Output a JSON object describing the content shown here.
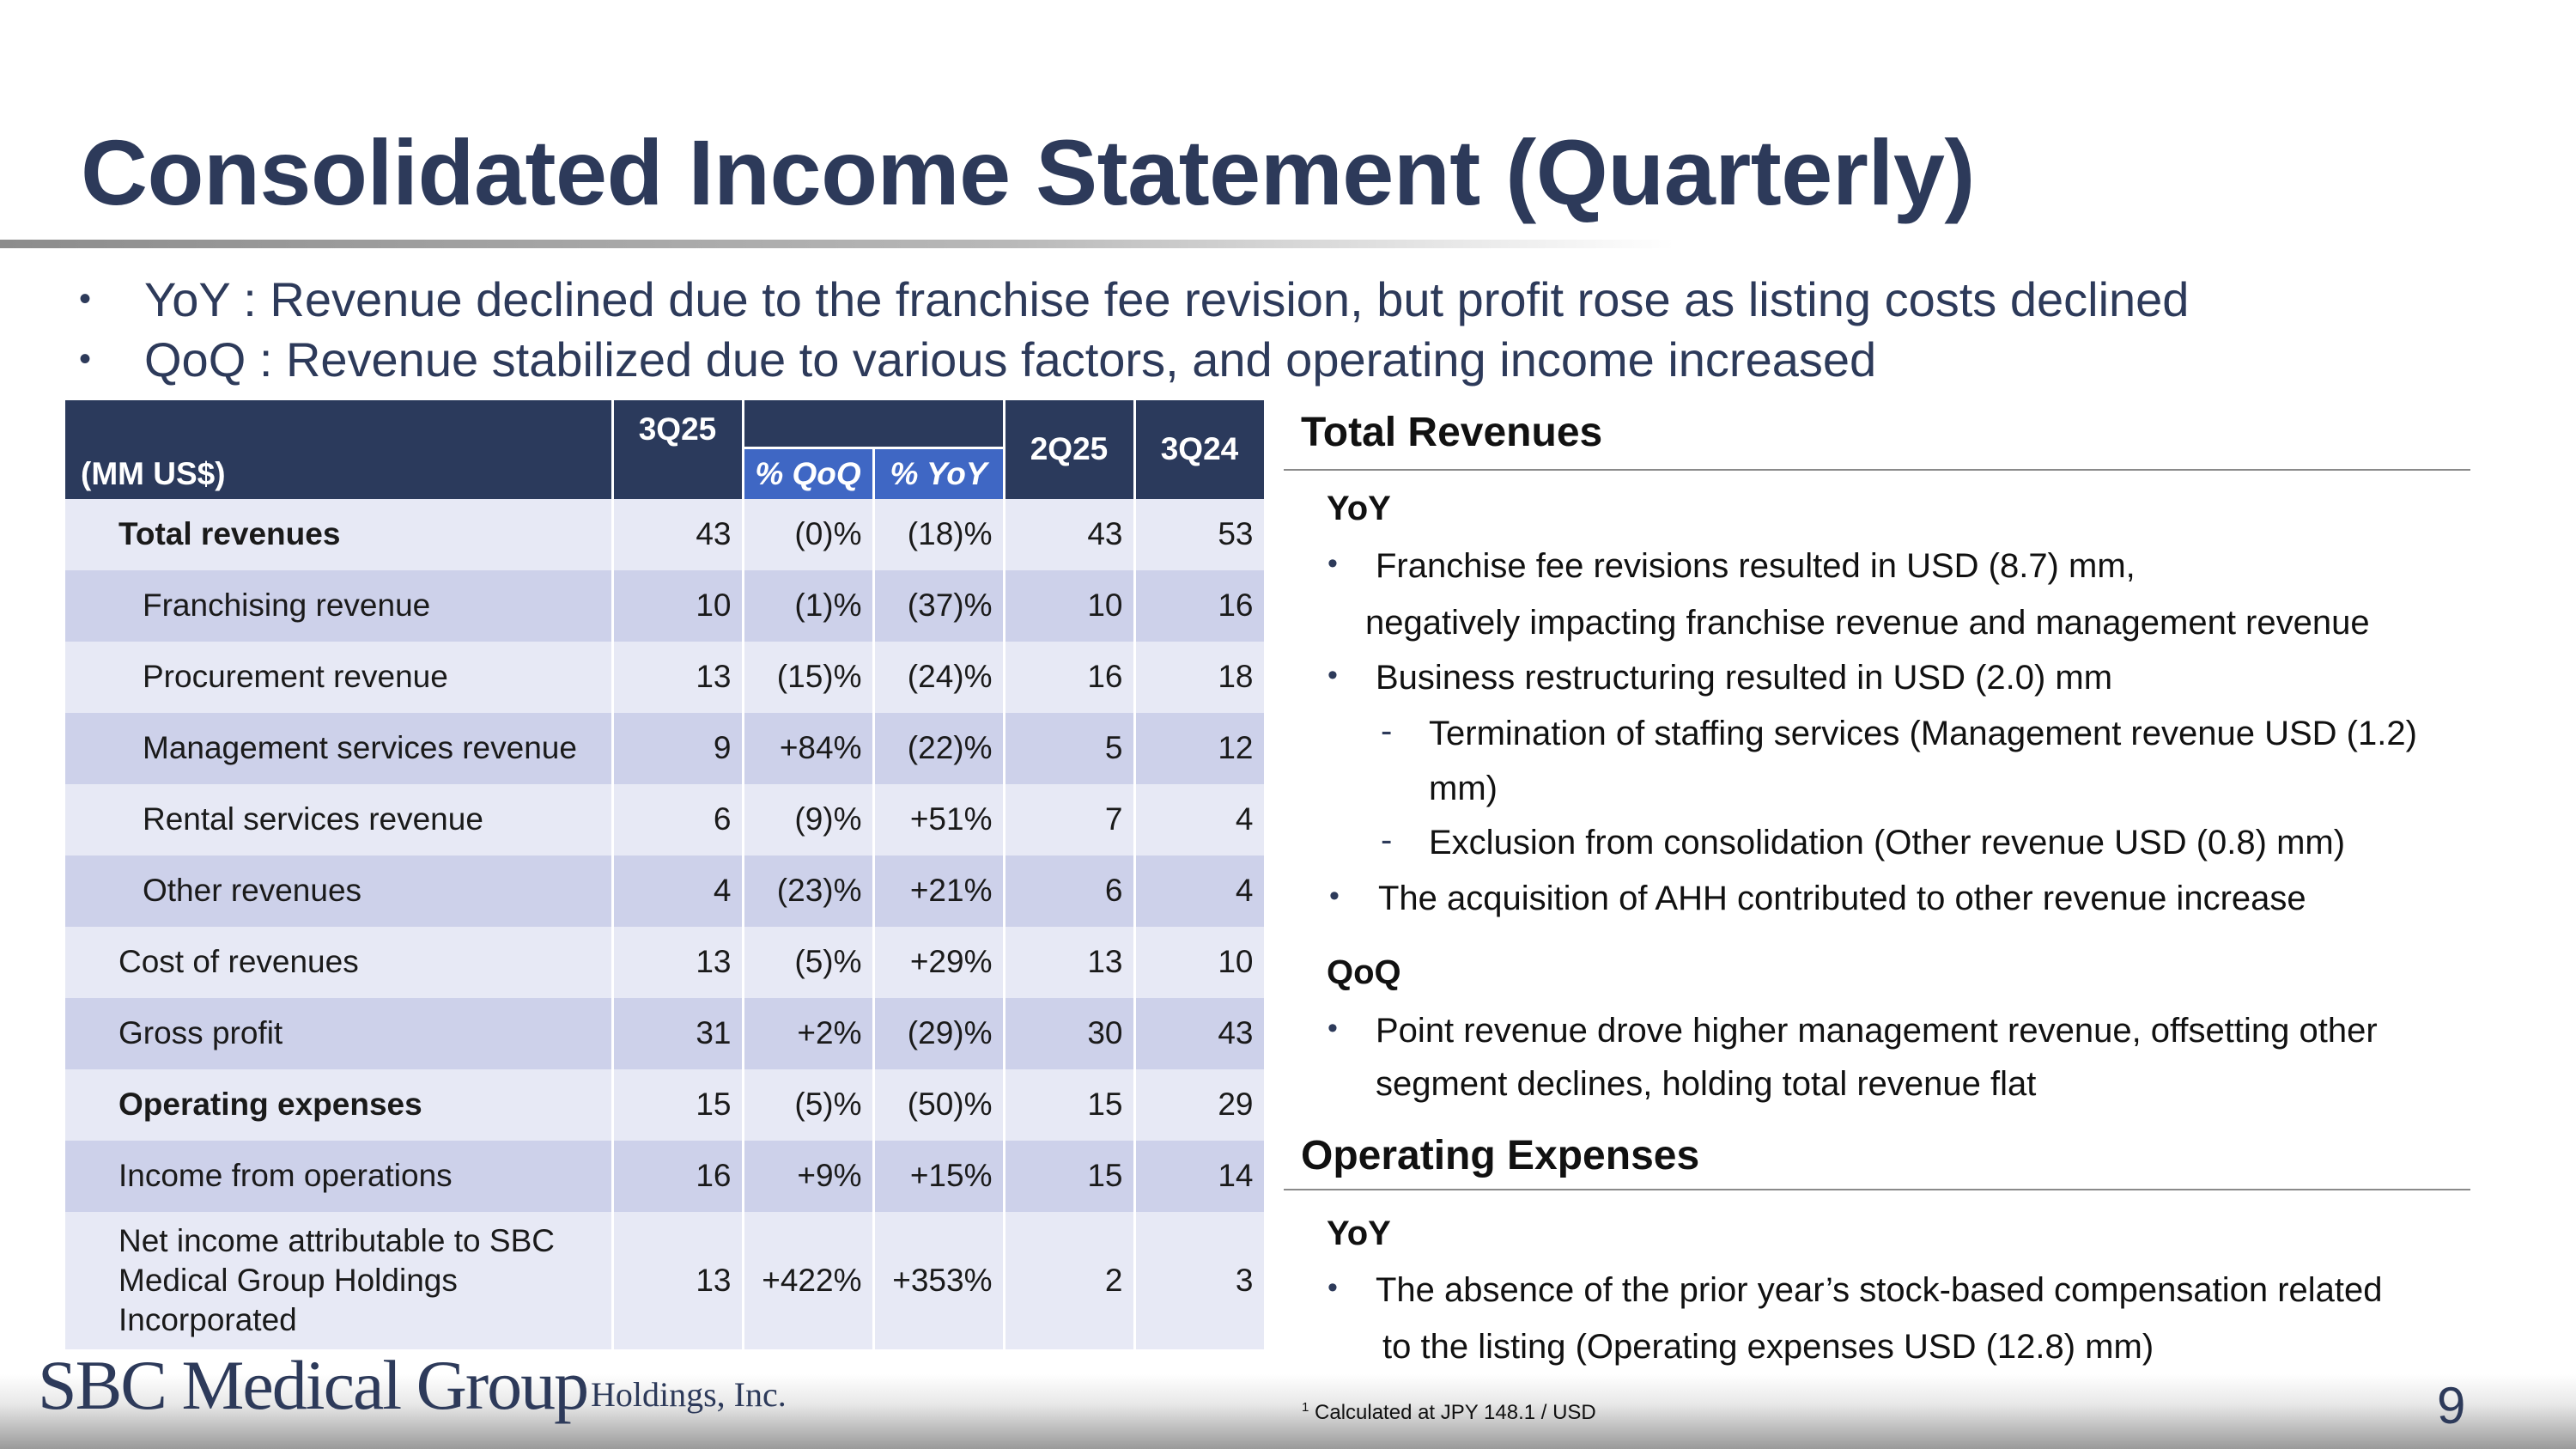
{
  "title": "Consolidated Income Statement (Quarterly)",
  "summary_bullets": [
    "YoY  : Revenue declined due to the franchise fee revision, but profit rose as listing costs declined",
    "QoQ : Revenue stabilized due to various factors, and operating income increased"
  ],
  "table": {
    "unit_label": "(MM US$)",
    "col_3q25": "3Q25",
    "col_qoq": "% QoQ",
    "col_yoy": "% YoY",
    "col_2q25": "2Q25",
    "col_3q24": "3Q24",
    "rows": [
      {
        "label": "Total revenues",
        "v3q25": "43",
        "qoq": "(0)%",
        "yoy": "(18)%",
        "v2q25": "43",
        "v3q24": "53"
      },
      {
        "label": "Franchising revenue",
        "v3q25": "10",
        "qoq": "(1)%",
        "yoy": "(37)%",
        "v2q25": "10",
        "v3q24": "16"
      },
      {
        "label": "Procurement revenue",
        "v3q25": "13",
        "qoq": "(15)%",
        "yoy": "(24)%",
        "v2q25": "16",
        "v3q24": "18"
      },
      {
        "label": "Management services revenue",
        "v3q25": "9",
        "qoq": "+84%",
        "yoy": "(22)%",
        "v2q25": "5",
        "v3q24": "12"
      },
      {
        "label": "Rental services revenue",
        "v3q25": "6",
        "qoq": "(9)%",
        "yoy": "+51%",
        "v2q25": "7",
        "v3q24": "4"
      },
      {
        "label": "Other revenues",
        "v3q25": "4",
        "qoq": "(23)%",
        "yoy": "+21%",
        "v2q25": "6",
        "v3q24": "4"
      },
      {
        "label": "Cost of revenues",
        "v3q25": "13",
        "qoq": "(5)%",
        "yoy": "+29%",
        "v2q25": "13",
        "v3q24": "10"
      },
      {
        "label": "Gross profit",
        "v3q25": "31",
        "qoq": "+2%",
        "yoy": "(29)%",
        "v2q25": "30",
        "v3q24": "43"
      },
      {
        "label": "Operating expenses",
        "v3q25": "15",
        "qoq": "(5)%",
        "yoy": "(50)%",
        "v2q25": "15",
        "v3q24": "29"
      },
      {
        "label": "Income from operations",
        "v3q25": "16",
        "qoq": "+9%",
        "yoy": "+15%",
        "v2q25": "15",
        "v3q24": "14"
      },
      {
        "label": "Net income attributable to SBC Medical Group Holdings Incorporated",
        "v3q25": "13",
        "qoq": "+422%",
        "yoy": "+353%",
        "v2q25": "2",
        "v3q24": "3"
      }
    ]
  },
  "right": {
    "revenues_heading": "Total Revenues",
    "yoy_label": "YoY",
    "rev_yoy_1a": "Franchise fee revisions resulted in USD (8.7) mm,",
    "rev_yoy_1b": "negatively impacting franchise revenue and management revenue",
    "rev_yoy_2": "Business restructuring resulted in USD (2.0) mm",
    "rev_yoy_2_sub1a": "Termination of staffing services (Management revenue USD (1.2)",
    "rev_yoy_2_sub1b": "mm)",
    "rev_yoy_2_sub2": "Exclusion from consolidation (Other revenue USD (0.8) mm)",
    "rev_yoy_3": "The acquisition of AHH contributed to other revenue increase",
    "qoq_label": "QoQ",
    "rev_qoq_1a": "Point revenue drove higher management revenue, offsetting other",
    "rev_qoq_1b": "segment declines, holding total revenue flat",
    "opex_heading": "Operating Expenses",
    "opex_yoy_label": "YoY",
    "opex_yoy_1a": "The absence of the prior year’s stock-based compensation related",
    "opex_yoy_1b": "to the listing (Operating expenses USD (12.8) mm)"
  },
  "footer": {
    "logo_main": "SBC Medical Group",
    "logo_sub": "Holdings, Inc.",
    "footnote_mark": "1",
    "footnote": "Calculated at JPY 148.1 / USD",
    "page_number": "9"
  }
}
